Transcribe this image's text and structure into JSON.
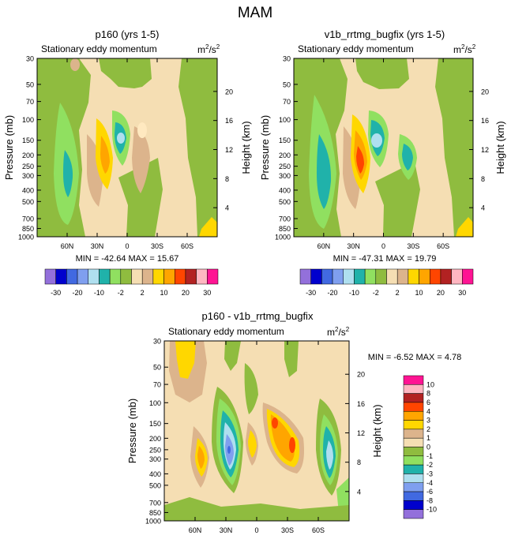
{
  "figure_title": "MAM",
  "colors": {
    "n30": "#9370db",
    "n20": "#0000cd",
    "n15": "#4169e1",
    "n10": "#7f9fef",
    "n5": "#afdfef",
    "n3": "#20b2aa",
    "n2": "#90e060",
    "n1": "#8fbc3f",
    "p1": "#f5deb3",
    "p2": "#dcb48c",
    "p5": "#ffd700",
    "p10": "#ffa500",
    "p15": "#ff4500",
    "p20": "#b22222",
    "p25": "#ffb6c1",
    "p30": "#ff1493",
    "neg_tail": "#cd853f"
  },
  "chart_data": [
    {
      "type": "heatmap",
      "title": "p160 (yrs 1-5)",
      "subtitle": "Stationary eddy momentum",
      "units": "m²/s²",
      "units_base": "m",
      "units_sup1": "2",
      "units_mid": "/s",
      "units_sup2": "2",
      "ylabel": "Pressure (mb)",
      "ylabel_right": "Height (km)",
      "yticks": [
        "30",
        "50",
        "70",
        "100",
        "150",
        "200",
        "250",
        "300",
        "400",
        "500",
        "700",
        "850",
        "1000"
      ],
      "yticks_right": [
        "20",
        "16",
        "12",
        "8",
        "4"
      ],
      "xticks": [
        "60N",
        "30N",
        "0",
        "30S",
        "60S"
      ],
      "stats": "MIN = -42.64   MAX =  15.67",
      "colorbar_labels": [
        "-30",
        "-20",
        "-10",
        "-2",
        "2",
        "10",
        "20",
        "30"
      ],
      "features": [
        {
          "lat": 64,
          "p": 280,
          "value": -3
        },
        {
          "lat": 30,
          "p": 200,
          "value": 10
        },
        {
          "lat": 20,
          "p": 150,
          "value": -10
        }
      ]
    },
    {
      "type": "heatmap",
      "title": "v1b_rrtmg_bugfix (yrs 1-5)",
      "subtitle": "Stationary eddy momentum",
      "units": "m²/s²",
      "units_base": "m",
      "units_sup1": "2",
      "units_mid": "/s",
      "units_sup2": "2",
      "ylabel": "Pressure (mb)",
      "ylabel_right": "Height (km)",
      "yticks": [
        "30",
        "50",
        "70",
        "100",
        "150",
        "200",
        "250",
        "300",
        "400",
        "500",
        "700",
        "850",
        "1000"
      ],
      "yticks_right": [
        "20",
        "16",
        "12",
        "8",
        "4"
      ],
      "xticks": [
        "60N",
        "30N",
        "0",
        "30S",
        "60S"
      ],
      "stats": "MIN = -47.31   MAX =  19.79",
      "colorbar_labels": [
        "-30",
        "-20",
        "-10",
        "-2",
        "2",
        "10",
        "20",
        "30"
      ],
      "features": [
        {
          "lat": 64,
          "p": 260,
          "value": -3
        },
        {
          "lat": 30,
          "p": 200,
          "value": 15
        },
        {
          "lat": 20,
          "p": 150,
          "value": -10
        }
      ]
    },
    {
      "type": "heatmap",
      "title": "p160 - v1b_rrtmg_bugfix",
      "subtitle": "Stationary eddy momentum",
      "units": "m²/s²",
      "units_base": "m",
      "units_sup1": "2",
      "units_mid": "/s",
      "units_sup2": "2",
      "ylabel": "Pressure (mb)",
      "ylabel_right": "Height (km)",
      "yticks": [
        "30",
        "50",
        "70",
        "100",
        "150",
        "200",
        "250",
        "300",
        "400",
        "500",
        "700",
        "850",
        "1000"
      ],
      "yticks_right": [
        "20",
        "16",
        "12",
        "8",
        "4"
      ],
      "xticks": [
        "60N",
        "30N",
        "0",
        "30S",
        "60S"
      ],
      "stats": "MIN =  -6.52   MAX =   4.78",
      "colorbar_labels": [
        "10",
        "8",
        "6",
        "4",
        "3",
        "2",
        "1",
        "0",
        "-1",
        "-2",
        "-3",
        "-4",
        "-6",
        "-8",
        "-10"
      ],
      "features": [
        {
          "lat": 33,
          "p": 280,
          "value": -6
        },
        {
          "lat": 60,
          "p": 280,
          "value": 3
        },
        {
          "lat": -30,
          "p": 200,
          "value": 4
        },
        {
          "lat": -75,
          "p": 280,
          "value": -4
        }
      ]
    }
  ]
}
